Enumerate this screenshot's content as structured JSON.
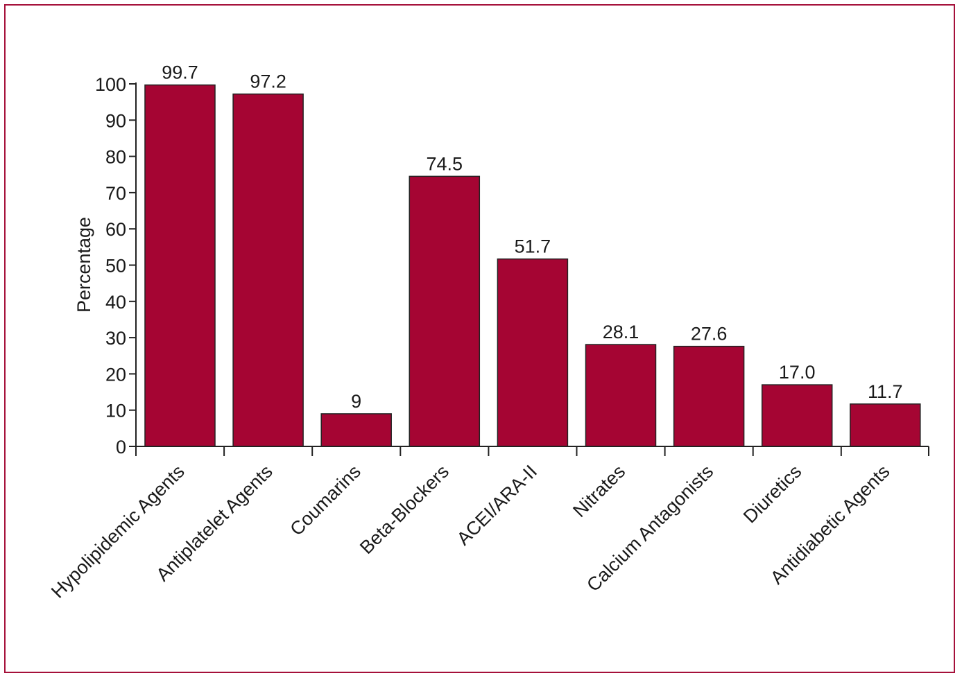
{
  "colors": {
    "bar": "#a50533",
    "frame": "#a5103a",
    "axis": "#222222"
  },
  "chart_data": {
    "type": "bar",
    "title": "",
    "xlabel": "",
    "ylabel": "Percentage",
    "ylim": [
      0,
      100
    ],
    "yticks": [
      0,
      10,
      20,
      30,
      40,
      50,
      60,
      70,
      80,
      90,
      100
    ],
    "grid": false,
    "legend": "none",
    "categories": [
      "Hypolipidemic Agents",
      "Antiplatelet Agents",
      "Coumarins",
      "Beta-Blockers",
      "ACEI/ARA-II",
      "Nitrates",
      "Calcium Antagonists",
      "Diuretics",
      "Antidiabetic Agents"
    ],
    "values": [
      99.7,
      97.2,
      9,
      74.5,
      51.7,
      28.1,
      27.6,
      17.0,
      11.7
    ],
    "value_labels": [
      "99.7",
      "97.2",
      "9",
      "74.5",
      "51.7",
      "28.1",
      "27.6",
      "17.0",
      "11.7"
    ]
  }
}
